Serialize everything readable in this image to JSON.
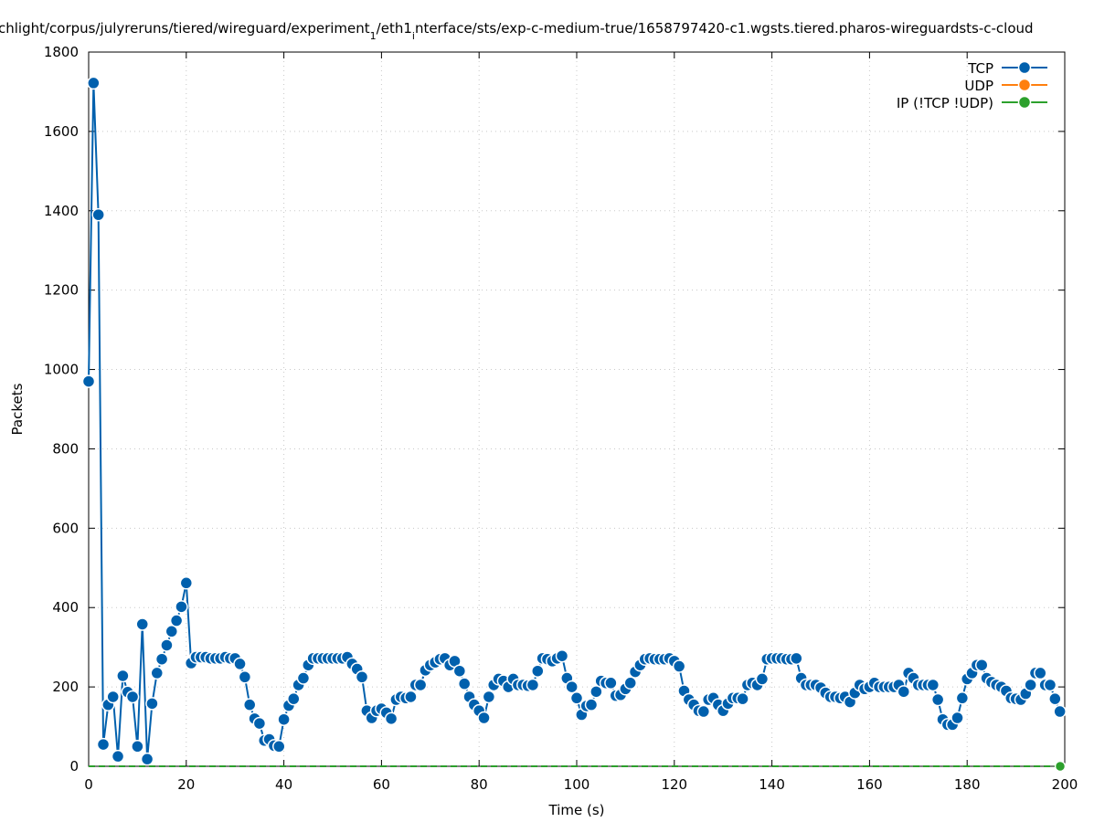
{
  "chart_data": {
    "type": "line",
    "title": "chlight/corpus/julyreruns/tiered/wireguard/experiment",
    "title_sub1": "1",
    "title_mid": "/eth1",
    "title_sub2": "i",
    "title_rest": "nterface/sts/exp-c-medium-true/1658797420-c1.wgsts.tiered.pharos-wireguardsts-c-cloud",
    "xlabel": "Time (s)",
    "ylabel": "Packets",
    "xlim": [
      0,
      200
    ],
    "ylim": [
      0,
      1800
    ],
    "x_ticks": [
      "0",
      "20",
      "40",
      "60",
      "80",
      "100",
      "120",
      "140",
      "160",
      "180",
      "200"
    ],
    "y_ticks": [
      "0",
      "200",
      "400",
      "600",
      "800",
      "1000",
      "1200",
      "1400",
      "1600",
      "1800"
    ],
    "grid": true,
    "legend_position": "top-right",
    "series": [
      {
        "name": "TCP",
        "color": "#0060ad",
        "x": [
          0,
          1,
          2,
          3,
          4,
          5,
          6,
          7,
          8,
          9,
          10,
          11,
          12,
          13,
          14,
          15,
          16,
          17,
          18,
          19,
          20,
          21,
          22,
          23,
          24,
          25,
          26,
          27,
          28,
          29,
          30,
          31,
          32,
          33,
          34,
          35,
          36,
          37,
          38,
          39,
          40,
          41,
          42,
          43,
          44,
          45,
          46,
          47,
          48,
          49,
          50,
          51,
          52,
          53,
          54,
          55,
          56,
          57,
          58,
          59,
          60,
          61,
          62,
          63,
          64,
          65,
          66,
          67,
          68,
          69,
          70,
          71,
          72,
          73,
          74,
          75,
          76,
          77,
          78,
          79,
          80,
          81,
          82,
          83,
          84,
          85,
          86,
          87,
          88,
          89,
          90,
          91,
          92,
          93,
          94,
          95,
          96,
          97,
          98,
          99,
          100,
          101,
          102,
          103,
          104,
          105,
          106,
          107,
          108,
          109,
          110,
          111,
          112,
          113,
          114,
          115,
          116,
          117,
          118,
          119,
          120,
          121,
          122,
          123,
          124,
          125,
          126,
          127,
          128,
          129,
          130,
          131,
          132,
          133,
          134,
          135,
          136,
          137,
          138,
          139,
          140,
          141,
          142,
          143,
          144,
          145,
          146,
          147,
          148,
          149,
          150,
          151,
          152,
          153,
          154,
          155,
          156,
          157,
          158,
          159,
          160,
          161,
          162,
          163,
          164,
          165,
          166,
          167,
          168,
          169,
          170,
          171,
          172,
          173,
          174,
          175,
          176,
          177,
          178,
          179,
          180,
          181,
          182,
          183,
          184,
          185,
          186,
          187,
          188,
          189,
          190,
          191,
          192,
          193,
          194,
          195,
          196,
          197,
          198,
          199
        ],
        "values": [
          970,
          1722,
          1390,
          55,
          155,
          175,
          25,
          228,
          187,
          175,
          50,
          358,
          18,
          158,
          235,
          270,
          305,
          340,
          367,
          402,
          462,
          260,
          275,
          275,
          275,
          272,
          272,
          272,
          275,
          272,
          272,
          258,
          225,
          155,
          120,
          108,
          65,
          68,
          52,
          50,
          118,
          153,
          170,
          205,
          222,
          255,
          272,
          272,
          272,
          272,
          272,
          272,
          272,
          275,
          258,
          245,
          225,
          140,
          122,
          140,
          145,
          135,
          120,
          168,
          175,
          172,
          175,
          205,
          205,
          242,
          255,
          262,
          270,
          272,
          255,
          265,
          240,
          208,
          175,
          155,
          140,
          122,
          175,
          205,
          220,
          215,
          200,
          220,
          205,
          205,
          203,
          205,
          240,
          272,
          270,
          265,
          272,
          278,
          222,
          200,
          172,
          130,
          152,
          155,
          188,
          215,
          210,
          210,
          178,
          180,
          195,
          210,
          238,
          255,
          270,
          272,
          270,
          270,
          270,
          272,
          265,
          252,
          190,
          168,
          155,
          140,
          138,
          168,
          172,
          155,
          140,
          158,
          172,
          172,
          170,
          205,
          210,
          205,
          220,
          270,
          272,
          272,
          272,
          270,
          270,
          272,
          222,
          205,
          205,
          205,
          198,
          185,
          175,
          175,
          172,
          175,
          162,
          185,
          205,
          195,
          200,
          210,
          200,
          200,
          200,
          200,
          205,
          188,
          235,
          222,
          205,
          205,
          205,
          205,
          168,
          118,
          105,
          105,
          122,
          172,
          220,
          235,
          255,
          255,
          222,
          212,
          205,
          200,
          190,
          172,
          170,
          168,
          183,
          205,
          235,
          235,
          205,
          205,
          170,
          138
        ]
      },
      {
        "name": "UDP",
        "color": "#ff7f0e",
        "x": [],
        "values": []
      },
      {
        "name": "IP (!TCP  !UDP)",
        "color": "#2ca02c",
        "x": [
          0,
          200
        ],
        "values": [
          0,
          0
        ]
      }
    ]
  }
}
